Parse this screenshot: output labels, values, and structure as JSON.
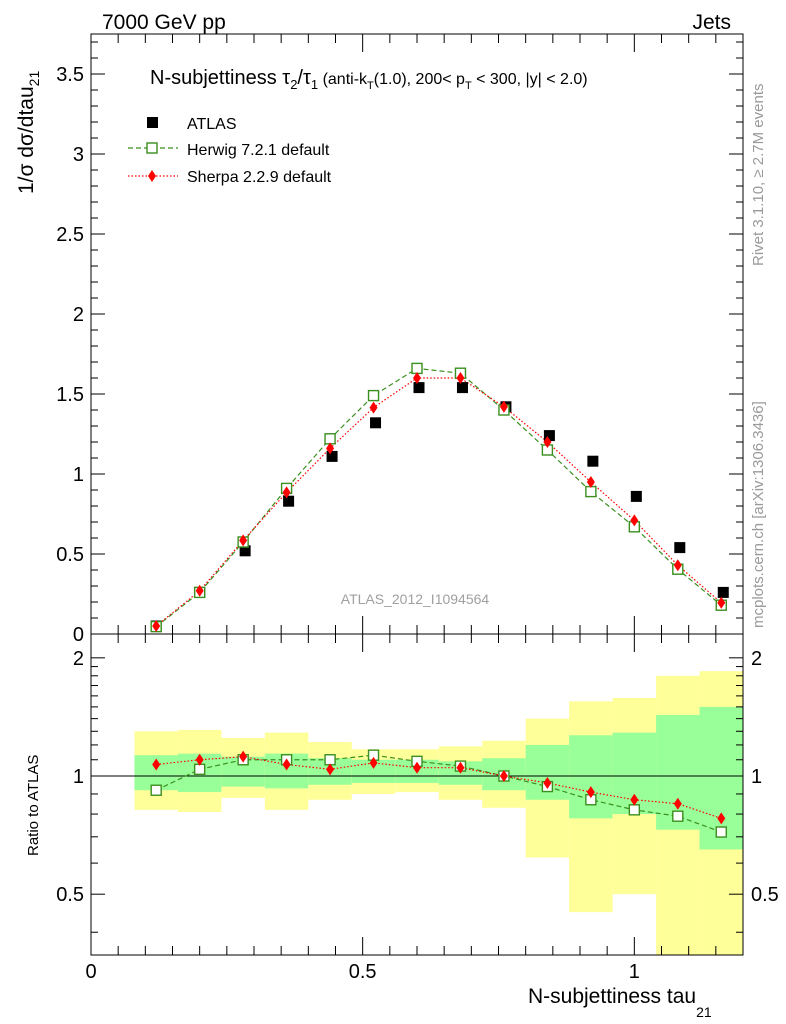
{
  "header": {
    "left_title": "7000 GeV pp",
    "right_title": "Jets"
  },
  "side_labels": {
    "rivet": "Rivet 3.1.10, ≥ 2.7M events",
    "mcplots": "mcplots.cern.ch [arXiv:1306.3436]"
  },
  "watermark": "ATLAS_2012_I1094564",
  "chart_data": [
    {
      "type": "scatter",
      "panel": "main",
      "title": "N-subjettiness τ₂/τ₁ (anti-kT(1.0), 200< pT < 300, |y| < 2.0)",
      "title_parts": {
        "main": "N-subjettiness τ",
        "sub1": "2",
        "slash": "/τ",
        "sub2": "1",
        "cut_a": " (anti-k",
        "cut_a_sub": "T",
        "cut_b": "(1.0), 200< p",
        "cut_b_sub": "T",
        "cut_c": " < 300, |y| < 2.0)"
      },
      "ylabel": "1/σ dσ/dtau",
      "ylabel_sub": "21",
      "xlim": [
        0,
        1.2
      ],
      "ylim": [
        0,
        3.75
      ],
      "y_ticks": [
        "0",
        "0.5",
        "1",
        "1.5",
        "2",
        "2.5",
        "3",
        "3.5"
      ],
      "x": [
        0.12,
        0.2,
        0.28,
        0.36,
        0.44,
        0.52,
        0.6,
        0.68,
        0.76,
        0.84,
        0.92,
        1.0,
        1.08,
        1.16
      ],
      "series": [
        {
          "name": "ATLAS",
          "color": "#000000",
          "marker": "filled-square",
          "values": [
            0.05,
            0.26,
            0.52,
            0.83,
            1.11,
            1.32,
            1.54,
            1.54,
            1.42,
            1.24,
            1.08,
            0.86,
            0.54,
            0.26
          ]
        },
        {
          "name": "Herwig 7.2.1 default",
          "color": "#3a8f1f",
          "marker": "open-square",
          "line": "dashed",
          "values": [
            0.046,
            0.26,
            0.575,
            0.91,
            1.22,
            1.49,
            1.66,
            1.63,
            1.4,
            1.15,
            0.89,
            0.67,
            0.405,
            0.18
          ]
        },
        {
          "name": "Sherpa 2.2.9 default",
          "color": "#ff0000",
          "marker": "diamond",
          "line": "dotted",
          "values": [
            0.05,
            0.27,
            0.585,
            0.885,
            1.16,
            1.415,
            1.6,
            1.6,
            1.42,
            1.2,
            0.95,
            0.71,
            0.43,
            0.195
          ]
        }
      ]
    },
    {
      "type": "scatter",
      "panel": "ratio",
      "ylabel": "Ratio to ATLAS",
      "xlabel": "N-subjettiness tau",
      "xlabel_sub": "21",
      "xlim": [
        0,
        1.2
      ],
      "ylim": [
        0.35,
        2.3
      ],
      "x_ticks": [
        "0",
        "0.5",
        "1"
      ],
      "y_ticks": [
        "0.5",
        "1",
        "2"
      ],
      "reference": 1,
      "bins": [
        {
          "lo": 0.08,
          "hi": 0.16,
          "g": [
            0.92,
            1.13
          ],
          "y": [
            0.82,
            1.3
          ]
        },
        {
          "lo": 0.16,
          "hi": 0.24,
          "g": [
            0.91,
            1.14
          ],
          "y": [
            0.81,
            1.31
          ]
        },
        {
          "lo": 0.24,
          "hi": 0.32,
          "g": [
            0.94,
            1.12
          ],
          "y": [
            0.88,
            1.25
          ]
        },
        {
          "lo": 0.32,
          "hi": 0.4,
          "g": [
            0.93,
            1.14
          ],
          "y": [
            0.82,
            1.29
          ]
        },
        {
          "lo": 0.4,
          "hi": 0.48,
          "g": [
            0.95,
            1.11
          ],
          "y": [
            0.87,
            1.22
          ]
        },
        {
          "lo": 0.48,
          "hi": 0.56,
          "g": [
            0.96,
            1.1
          ],
          "y": [
            0.9,
            1.17
          ]
        },
        {
          "lo": 0.56,
          "hi": 0.64,
          "g": [
            0.96,
            1.1
          ],
          "y": [
            0.91,
            1.17
          ]
        },
        {
          "lo": 0.64,
          "hi": 0.72,
          "g": [
            0.95,
            1.09
          ],
          "y": [
            0.87,
            1.19
          ]
        },
        {
          "lo": 0.72,
          "hi": 0.8,
          "g": [
            0.92,
            1.11
          ],
          "y": [
            0.83,
            1.23
          ]
        },
        {
          "lo": 0.8,
          "hi": 0.88,
          "g": [
            0.87,
            1.2
          ],
          "y": [
            0.62,
            1.4
          ]
        },
        {
          "lo": 0.88,
          "hi": 0.96,
          "g": [
            0.78,
            1.27
          ],
          "y": [
            0.45,
            1.55
          ]
        },
        {
          "lo": 0.96,
          "hi": 1.04,
          "g": [
            0.8,
            1.29
          ],
          "y": [
            0.5,
            1.58
          ]
        },
        {
          "lo": 1.04,
          "hi": 1.12,
          "g": [
            0.73,
            1.43
          ],
          "y": [
            0.3,
            1.8
          ]
        },
        {
          "lo": 1.12,
          "hi": 1.2,
          "g": [
            0.65,
            1.5
          ],
          "y": [
            0.3,
            1.85
          ]
        }
      ],
      "series": [
        {
          "name": "Herwig 7.2.1 default",
          "color": "#3a8f1f",
          "values": [
            0.92,
            1.04,
            1.1,
            1.1,
            1.1,
            1.13,
            1.09,
            1.06,
            1.0,
            0.94,
            0.87,
            0.82,
            0.79,
            0.72
          ]
        },
        {
          "name": "Sherpa 2.2.9 default",
          "color": "#ff0000",
          "values": [
            1.07,
            1.1,
            1.12,
            1.07,
            1.04,
            1.08,
            1.05,
            1.05,
            1.0,
            0.96,
            0.91,
            0.87,
            0.85,
            0.78
          ]
        }
      ],
      "band_colors": {
        "inner": "#99ff99",
        "outer": "#ffff99"
      }
    }
  ]
}
